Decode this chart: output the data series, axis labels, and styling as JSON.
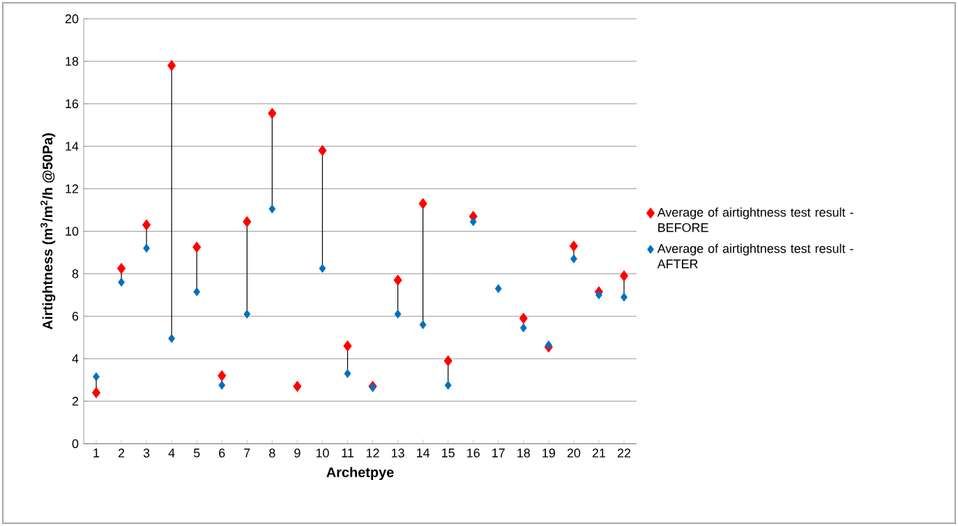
{
  "chart_data": {
    "type": "scatter",
    "xlabel": "Archetpye",
    "ylabel": "Airtightness (m$^{3}$/m$^{2}$/h @50Pa)",
    "categories": [
      "1",
      "2",
      "3",
      "4",
      "5",
      "6",
      "7",
      "8",
      "9",
      "10",
      "11",
      "12",
      "13",
      "14",
      "15",
      "16",
      "17",
      "18",
      "19",
      "20",
      "21",
      "22"
    ],
    "series": [
      {
        "name": "Average of airtightness test result - BEFORE",
        "color": "#ff0000",
        "values": [
          2.4,
          8.25,
          10.3,
          17.8,
          9.25,
          3.2,
          10.45,
          15.55,
          2.7,
          13.8,
          4.6,
          2.7,
          7.7,
          11.3,
          3.9,
          10.7,
          null,
          5.9,
          4.55,
          9.3,
          7.15,
          7.9
        ]
      },
      {
        "name": "Average of airtightness test result - AFTER",
        "color": "#0070c0",
        "values": [
          3.15,
          7.6,
          9.2,
          4.95,
          7.15,
          2.75,
          6.1,
          11.05,
          null,
          8.25,
          3.3,
          2.65,
          6.1,
          5.6,
          2.75,
          10.45,
          7.3,
          5.45,
          4.65,
          8.7,
          7.0,
          6.9
        ]
      }
    ],
    "ylim": [
      0,
      20
    ],
    "yticks": [
      0,
      2,
      4,
      6,
      8,
      10,
      12,
      14,
      16,
      18,
      20
    ],
    "grid": "y",
    "legend": "right",
    "marker": "diamond"
  }
}
